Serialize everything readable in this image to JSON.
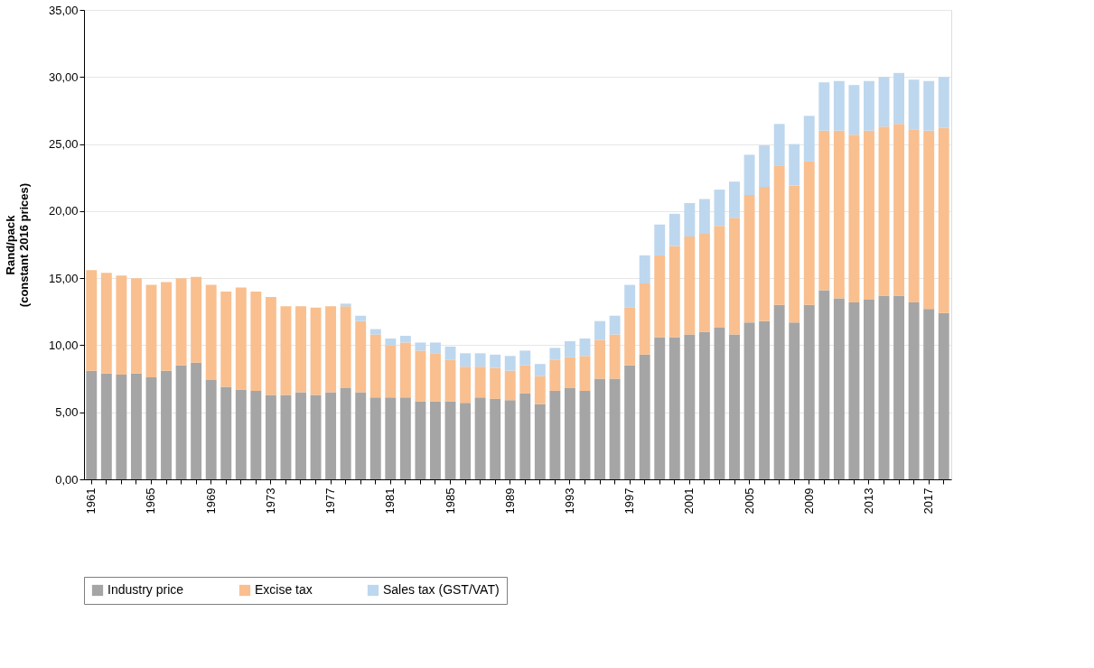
{
  "chart_data": {
    "type": "bar",
    "stacked": true,
    "ylabel": "Rand/pack\n(constant 2016 prices)",
    "categories": [
      "1961",
      null,
      null,
      null,
      "1965",
      null,
      null,
      null,
      "1969",
      null,
      null,
      null,
      "1973",
      null,
      null,
      null,
      "1977",
      null,
      null,
      null,
      "1981",
      null,
      null,
      null,
      "1985",
      null,
      null,
      null,
      "1989",
      null,
      null,
      null,
      "1993",
      null,
      null,
      null,
      "1997",
      null,
      null,
      null,
      "2001",
      null,
      null,
      null,
      "2005",
      null,
      null,
      null,
      "2009",
      null,
      null,
      null,
      "2013",
      null,
      null,
      null,
      "2017",
      null
    ],
    "series": [
      {
        "name": "Industry price",
        "color": "#a5a5a5",
        "values": [
          8.1,
          7.9,
          7.8,
          7.9,
          7.6,
          8.1,
          8.5,
          8.7,
          7.4,
          6.9,
          6.7,
          6.6,
          6.3,
          6.3,
          6.5,
          6.3,
          6.5,
          6.8,
          6.5,
          6.1,
          6.1,
          6.1,
          5.8,
          5.8,
          5.8,
          5.7,
          6.1,
          6.0,
          5.9,
          6.4,
          5.6,
          6.6,
          6.8,
          6.6,
          7.5,
          7.5,
          8.5,
          9.3,
          10.6,
          10.6,
          10.8,
          11.0,
          11.3,
          10.8,
          11.7,
          11.8,
          13.0,
          11.7,
          13.0,
          14.1,
          13.5,
          13.2,
          13.4,
          13.7,
          13.7,
          13.2,
          12.7,
          12.4
        ]
      },
      {
        "name": "Excise tax",
        "color": "#f9bf8f",
        "values": [
          7.5,
          7.5,
          7.4,
          7.1,
          6.9,
          6.6,
          6.5,
          6.4,
          7.1,
          7.1,
          7.6,
          7.4,
          7.3,
          6.6,
          6.4,
          6.5,
          6.4,
          6.1,
          5.3,
          4.7,
          3.9,
          4.1,
          3.8,
          3.6,
          3.1,
          2.7,
          2.3,
          2.3,
          2.2,
          2.1,
          2.1,
          2.3,
          2.3,
          2.6,
          2.9,
          3.3,
          4.3,
          5.3,
          6.1,
          6.8,
          7.3,
          7.3,
          7.6,
          8.7,
          9.5,
          10.0,
          10.4,
          10.2,
          10.7,
          11.9,
          12.5,
          12.5,
          12.6,
          12.6,
          12.8,
          12.9,
          13.3,
          13.8
        ]
      },
      {
        "name": "Sales tax (GST/VAT)",
        "color": "#bdd7ee",
        "values": [
          null,
          null,
          null,
          null,
          null,
          null,
          null,
          null,
          null,
          null,
          null,
          null,
          null,
          null,
          null,
          null,
          null,
          0.2,
          0.4,
          0.4,
          0.5,
          0.5,
          0.6,
          0.8,
          1.0,
          1.0,
          1.0,
          1.0,
          1.1,
          1.1,
          0.9,
          0.9,
          1.2,
          1.3,
          1.4,
          1.4,
          1.7,
          2.1,
          2.3,
          2.4,
          2.5,
          2.6,
          2.7,
          2.7,
          3.0,
          3.1,
          3.1,
          3.1,
          3.4,
          3.6,
          3.7,
          3.7,
          3.7,
          3.7,
          3.8,
          3.7,
          3.7,
          3.8
        ]
      }
    ],
    "ylim": [
      0,
      35
    ],
    "yticks": [
      {
        "value": 0,
        "label": "0,00"
      },
      {
        "value": 5,
        "label": "5,00"
      },
      {
        "value": 10,
        "label": "10,00"
      },
      {
        "value": 15,
        "label": "15,00"
      },
      {
        "value": 20,
        "label": "20,00"
      },
      {
        "value": 25,
        "label": "25,00"
      },
      {
        "value": 30,
        "label": "30,00"
      },
      {
        "value": 35,
        "label": "35,00"
      }
    ],
    "grid": "y",
    "legend": "bottom"
  }
}
